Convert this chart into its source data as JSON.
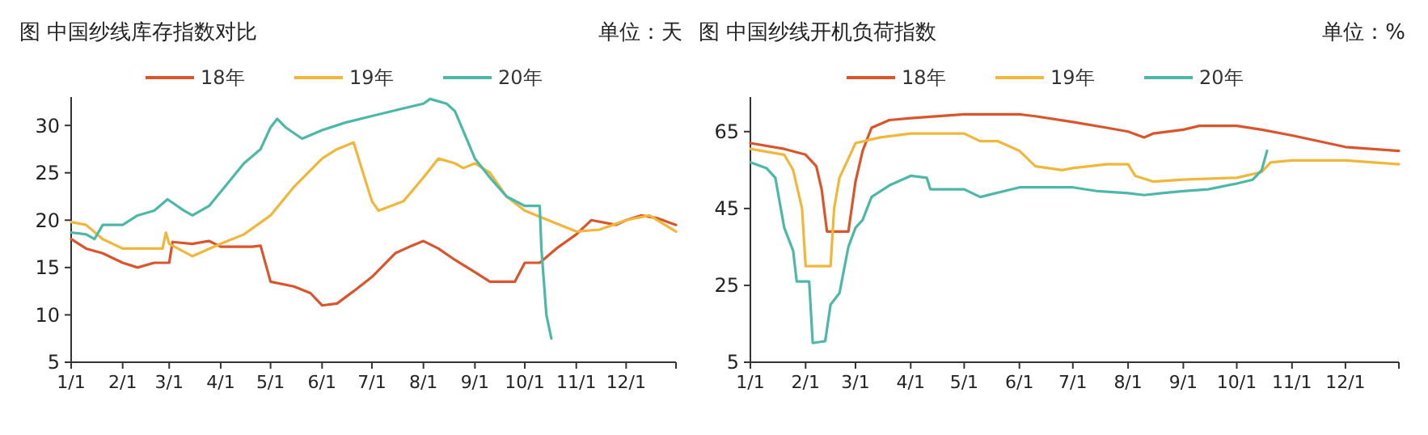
{
  "chart_data": [
    {
      "type": "line",
      "title": "图 中国纱线库存指数对比",
      "subtitle": "单位：天",
      "legend": "top",
      "grid": false,
      "line_style": "solid",
      "marker": "none",
      "xlim": [
        "--01-01",
        "--12-31"
      ],
      "xticks": [
        {
          "value": "--01-01",
          "label": "1/1"
        },
        {
          "value": "--02-01",
          "label": "2/1"
        },
        {
          "value": "--03-01",
          "label": "3/1"
        },
        {
          "value": "--04-01",
          "label": "4/1"
        },
        {
          "value": "--05-01",
          "label": "5/1"
        },
        {
          "value": "--06-01",
          "label": "6/1"
        },
        {
          "value": "--07-01",
          "label": "7/1"
        },
        {
          "value": "--08-01",
          "label": "8/1"
        },
        {
          "value": "--09-01",
          "label": "9/1"
        },
        {
          "value": "--10-01",
          "label": "10/1"
        },
        {
          "value": "--11-01",
          "label": "11/1"
        },
        {
          "value": "--12-01",
          "label": "12/1"
        }
      ],
      "ylim": [
        5,
        33
      ],
      "yticks": [
        5,
        10,
        15,
        20,
        25,
        30
      ],
      "series": [
        {
          "name": "18年",
          "color": "#d9552c",
          "x": [
            "--01-01",
            "--01-10",
            "--01-20",
            "--02-01",
            "--02-10",
            "--02-20",
            "--03-01",
            "--03-03",
            "--03-15",
            "--03-25",
            "--04-01",
            "--04-20",
            "--04-25",
            "--05-01",
            "--05-15",
            "--05-25",
            "--06-01",
            "--06-10",
            "--06-20",
            "--07-01",
            "--07-15",
            "--07-25",
            "--08-01",
            "--08-10",
            "--08-20",
            "--09-01",
            "--09-10",
            "--09-25",
            "--10-01",
            "--10-10",
            "--10-20",
            "--11-01",
            "--11-10",
            "--11-25",
            "--12-01",
            "--12-10",
            "--12-20",
            "--12-31"
          ],
          "values": [
            18,
            17,
            16.5,
            15.5,
            15,
            15.5,
            15.5,
            17.7,
            17.5,
            17.8,
            17.2,
            17.2,
            17.3,
            13.5,
            13,
            12.3,
            11,
            11.2,
            12.5,
            14,
            16.5,
            17.3,
            17.8,
            17,
            15.8,
            14.5,
            13.5,
            13.5,
            15.5,
            15.5,
            17,
            18.5,
            20,
            19.5,
            20,
            20.5,
            20.2,
            19.5
          ]
        },
        {
          "name": "19年",
          "color": "#f0b73a",
          "x": [
            "--01-01",
            "--01-10",
            "--01-20",
            "--02-01",
            "--02-15",
            "--02-25",
            "--02-27",
            "--03-01",
            "--03-15",
            "--04-01",
            "--04-15",
            "--05-01",
            "--05-15",
            "--06-01",
            "--06-10",
            "--06-20",
            "--07-01",
            "--07-05",
            "--07-20",
            "--08-01",
            "--08-10",
            "--08-20",
            "--08-25",
            "--09-01",
            "--09-10",
            "--09-20",
            "--10-01",
            "--10-15",
            "--11-01",
            "--11-15",
            "--12-01",
            "--12-15",
            "--12-31"
          ],
          "values": [
            19.8,
            19.5,
            18,
            17,
            17,
            17,
            18.7,
            17.5,
            16.2,
            17.5,
            18.5,
            20.5,
            23.5,
            26.5,
            27.5,
            28.2,
            22,
            21,
            22,
            24.5,
            26.5,
            26,
            25.5,
            26,
            25,
            22.5,
            21,
            20,
            18.8,
            19,
            20,
            20.5,
            18.8
          ]
        },
        {
          "name": "20年",
          "color": "#4db8a8",
          "x": [
            "--01-01",
            "--01-10",
            "--01-15",
            "--01-20",
            "--02-01",
            "--02-10",
            "--02-20",
            "--02-28",
            "--03-10",
            "--03-15",
            "--03-25",
            "--04-01",
            "--04-15",
            "--04-25",
            "--05-01",
            "--05-05",
            "--05-10",
            "--05-20",
            "--06-01",
            "--06-15",
            "--07-01",
            "--07-20",
            "--08-01",
            "--08-05",
            "--08-15",
            "--08-20",
            "--09-01",
            "--09-10",
            "--09-20",
            "--10-01",
            "--10-10",
            "--10-11",
            "--10-14",
            "--10-17"
          ],
          "values": [
            18.7,
            18.5,
            18,
            19.5,
            19.5,
            20.5,
            21,
            22.2,
            21,
            20.5,
            21.5,
            23,
            26,
            27.5,
            29.8,
            30.7,
            29.8,
            28.6,
            29.5,
            30.3,
            31,
            31.8,
            32.3,
            32.8,
            32.3,
            31.5,
            26.5,
            24.5,
            22.5,
            21.5,
            21.5,
            17,
            10,
            7.5
          ]
        }
      ]
    },
    {
      "type": "line",
      "title": "图 中国纱线开机负荷指数",
      "subtitle": "单位：%",
      "legend": "top",
      "grid": false,
      "line_style": "solid",
      "marker": "none",
      "xlim": [
        "--01-01",
        "--12-31"
      ],
      "xticks": [
        {
          "value": "--01-01",
          "label": "1/1"
        },
        {
          "value": "--02-01",
          "label": "2/1"
        },
        {
          "value": "--03-01",
          "label": "3/1"
        },
        {
          "value": "--04-01",
          "label": "4/1"
        },
        {
          "value": "--05-01",
          "label": "5/1"
        },
        {
          "value": "--06-01",
          "label": "6/1"
        },
        {
          "value": "--07-01",
          "label": "7/1"
        },
        {
          "value": "--08-01",
          "label": "8/1"
        },
        {
          "value": "--09-01",
          "label": "9/1"
        },
        {
          "value": "--10-01",
          "label": "10/1"
        },
        {
          "value": "--11-01",
          "label": "11/1"
        },
        {
          "value": "--12-01",
          "label": "12/1"
        }
      ],
      "ylim": [
        5,
        74
      ],
      "yticks": [
        5,
        25,
        45,
        65
      ],
      "series": [
        {
          "name": "18年",
          "color": "#d9552c",
          "x": [
            "--01-01",
            "--01-20",
            "--02-01",
            "--02-07",
            "--02-10",
            "--02-13",
            "--02-25",
            "--03-01",
            "--03-05",
            "--03-10",
            "--03-20",
            "--04-01",
            "--05-01",
            "--06-01",
            "--06-10",
            "--07-01",
            "--07-20",
            "--08-01",
            "--08-10",
            "--08-15",
            "--09-01",
            "--09-10",
            "--10-01",
            "--10-15",
            "--11-01",
            "--12-01",
            "--12-31"
          ],
          "values": [
            62,
            60.5,
            59,
            56,
            50,
            39,
            39,
            52,
            60,
            66,
            68,
            68.5,
            69.5,
            69.5,
            69,
            67.5,
            66,
            65,
            63.5,
            64.5,
            65.5,
            66.5,
            66.5,
            65.5,
            64,
            61,
            60
          ]
        },
        {
          "name": "19年",
          "color": "#f0b73a",
          "x": [
            "--01-01",
            "--01-20",
            "--01-25",
            "--01-30",
            "--02-01",
            "--02-15",
            "--02-17",
            "--02-20",
            "--02-27",
            "--03-01",
            "--03-15",
            "--04-01",
            "--05-01",
            "--05-10",
            "--05-20",
            "--06-01",
            "--06-10",
            "--06-25",
            "--07-01",
            "--07-20",
            "--08-01",
            "--08-05",
            "--08-15",
            "--09-01",
            "--10-01",
            "--10-15",
            "--10-20",
            "--11-01",
            "--12-01",
            "--12-31"
          ],
          "values": [
            60.5,
            59,
            55,
            45,
            30,
            30,
            45,
            53,
            60,
            62,
            63.5,
            64.5,
            64.5,
            62.5,
            62.5,
            60,
            56,
            55,
            55.5,
            56.5,
            56.5,
            53.5,
            52,
            52.5,
            53,
            54.5,
            57,
            57.5,
            57.5,
            56.5
          ]
        },
        {
          "name": "20年",
          "color": "#4db8a8",
          "x": [
            "--01-01",
            "--01-10",
            "--01-15",
            "--01-20",
            "--01-25",
            "--01-27",
            "--02-01",
            "--02-03",
            "--02-05",
            "--02-12",
            "--02-15",
            "--02-20",
            "--02-25",
            "--03-01",
            "--03-05",
            "--03-10",
            "--03-20",
            "--04-01",
            "--04-10",
            "--04-12",
            "--05-01",
            "--05-10",
            "--06-01",
            "--07-01",
            "--07-15",
            "--08-01",
            "--08-10",
            "--08-20",
            "--09-01",
            "--09-15",
            "--10-01",
            "--10-10",
            "--10-15",
            "--10-18"
          ],
          "values": [
            57,
            55.5,
            53,
            40,
            34,
            26,
            26,
            26,
            10,
            10.5,
            20,
            23,
            35,
            40,
            42,
            48,
            51,
            53.5,
            53,
            50,
            50,
            48,
            50.5,
            50.5,
            49.5,
            49,
            48.5,
            49,
            49.5,
            50,
            51.5,
            52.5,
            55,
            60
          ]
        }
      ]
    }
  ]
}
